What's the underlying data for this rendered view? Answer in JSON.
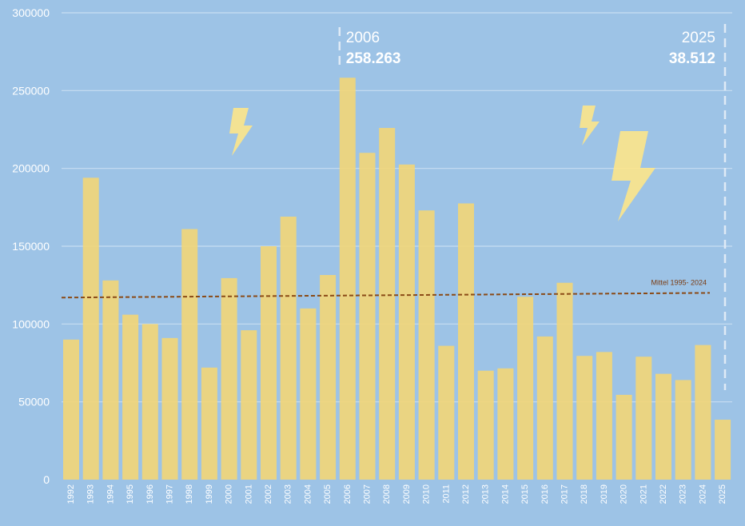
{
  "chart_data": {
    "type": "bar",
    "title": "",
    "xlabel": "",
    "ylabel": "",
    "ylim": [
      0,
      300000
    ],
    "yticks": [
      0,
      50000,
      100000,
      150000,
      200000,
      250000,
      300000
    ],
    "ytick_labels": [
      "0",
      "50000",
      "100000",
      "150000",
      "200000",
      "250000",
      "300000"
    ],
    "grid": true,
    "categories": [
      "1992",
      "1993",
      "1994",
      "1995",
      "1996",
      "1997",
      "1998",
      "1999",
      "2000",
      "2001",
      "2002",
      "2003",
      "2004",
      "2005",
      "2006",
      "2007",
      "2008",
      "2009",
      "2010",
      "2011",
      "2012",
      "2013",
      "2014",
      "2015",
      "2016",
      "2017",
      "2018",
      "2019",
      "2020",
      "2021",
      "2022",
      "2023",
      "2024",
      "2025"
    ],
    "values": [
      90000,
      194000,
      128000,
      106000,
      100000,
      91000,
      161000,
      72000,
      129500,
      96000,
      150000,
      169000,
      110000,
      131500,
      258263,
      210000,
      226000,
      202500,
      173000,
      86000,
      177500,
      70000,
      71500,
      117500,
      92000,
      126500,
      79500,
      82000,
      54500,
      79000,
      68000,
      64000,
      86500,
      38512
    ],
    "colors": {
      "background": "#9dc3e6",
      "bar": "#f1d67a",
      "grid": "#c8def2",
      "mean_line": "#8a4a16",
      "icon": "#fde58a"
    },
    "mean_line": {
      "label": "Mittel 1995- 2024",
      "start_value": 117000,
      "end_value": 120000
    },
    "annotations": [
      {
        "year_label": "2006",
        "value_label": "258.263",
        "category": "2006",
        "align": "left"
      },
      {
        "year_label": "2025",
        "value_label": "38.512",
        "category": "2025",
        "align": "right"
      }
    ],
    "icons": [
      "lightning-icon",
      "lightning-icon",
      "lightning-icon"
    ]
  }
}
